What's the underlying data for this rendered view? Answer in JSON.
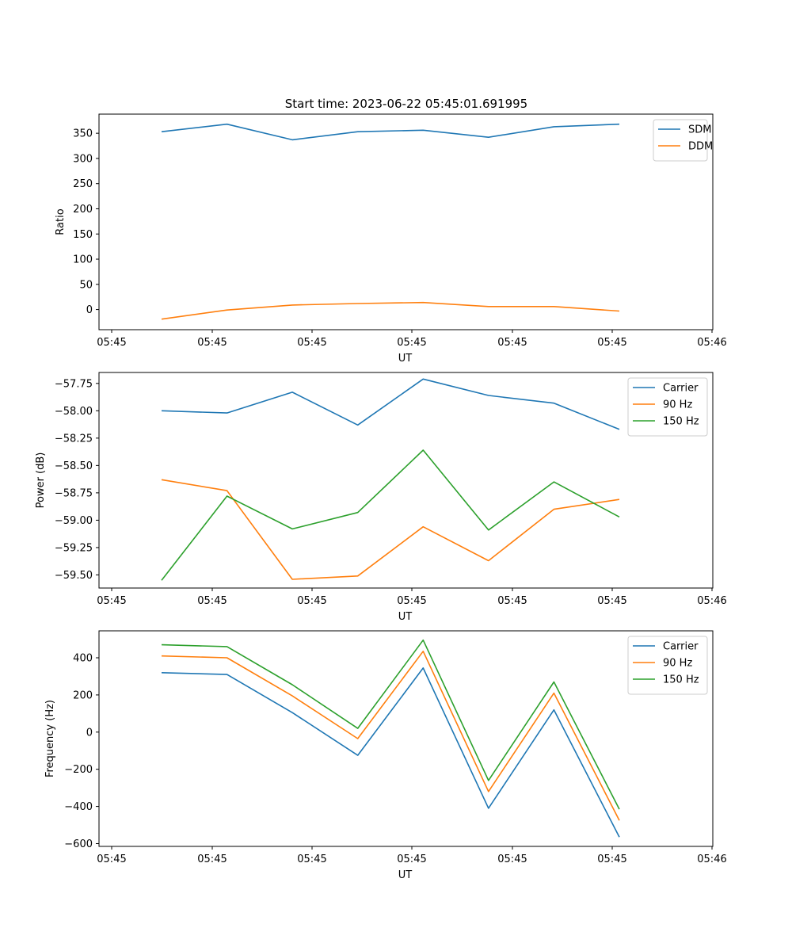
{
  "figure": {
    "title": "Start time: 2023-06-22 05:45:01.691995"
  },
  "chart_data": [
    {
      "type": "line",
      "title": "Start time: 2023-06-22 05:45:01.691995",
      "xlabel": "UT",
      "ylabel": "Ratio",
      "x_tick_labels": [
        "05:45",
        "05:45",
        "05:45",
        "05:45",
        "05:45",
        "05:45",
        "05:46"
      ],
      "x_axis_note": "x positions are point indices 0–7; tick labels are printed as shown",
      "x": [
        0,
        1,
        2,
        3,
        4,
        5,
        6,
        7
      ],
      "ylim": [
        -40,
        388
      ],
      "yticks": [
        0,
        50,
        100,
        150,
        200,
        250,
        300,
        350
      ],
      "legend": "top-right",
      "grid": false,
      "series": [
        {
          "name": "SDM",
          "color": "#1f77b4",
          "values": [
            353,
            368,
            337,
            353,
            356,
            342,
            363,
            368
          ]
        },
        {
          "name": "DDM",
          "color": "#ff7f0e",
          "values": [
            -19,
            -1,
            9,
            12,
            14,
            6,
            6,
            -3
          ]
        }
      ]
    },
    {
      "type": "line",
      "xlabel": "UT",
      "ylabel": "Power (dB)",
      "x_tick_labels": [
        "05:45",
        "05:45",
        "05:45",
        "05:45",
        "05:45",
        "05:45",
        "05:46"
      ],
      "x": [
        0,
        1,
        2,
        3,
        4,
        5,
        6,
        7
      ],
      "ylim": [
        -59.62,
        -57.65
      ],
      "yticks": [
        -59.5,
        -59.25,
        -59.0,
        -58.75,
        -58.5,
        -58.25,
        -58.0,
        -57.75
      ],
      "ytick_labels": [
        "−59.50",
        "−59.25",
        "−59.00",
        "−58.75",
        "−58.50",
        "−58.25",
        "−58.00",
        "−57.75"
      ],
      "legend": "top-right",
      "grid": false,
      "series": [
        {
          "name": "Carrier",
          "color": "#1f77b4",
          "values": [
            -58.0,
            -58.02,
            -57.83,
            -58.13,
            -57.71,
            -57.86,
            -57.93,
            -58.17
          ]
        },
        {
          "name": "90 Hz",
          "color": "#ff7f0e",
          "values": [
            -58.63,
            -58.73,
            -59.54,
            -59.51,
            -59.06,
            -59.37,
            -58.9,
            -58.81
          ]
        },
        {
          "name": "150 Hz",
          "color": "#2ca02c",
          "values": [
            -59.55,
            -58.78,
            -59.08,
            -58.93,
            -58.36,
            -59.09,
            -58.65,
            -58.97
          ]
        }
      ]
    },
    {
      "type": "line",
      "xlabel": "UT",
      "ylabel": "Frequency (Hz)",
      "x_tick_labels": [
        "05:45",
        "05:45",
        "05:45",
        "05:45",
        "05:45",
        "05:45",
        "05:46"
      ],
      "x": [
        0,
        1,
        2,
        3,
        4,
        5,
        6,
        7
      ],
      "ylim": [
        -615,
        545
      ],
      "yticks": [
        -600,
        -400,
        -200,
        0,
        200,
        400
      ],
      "ytick_labels": [
        "−600",
        "−400",
        "−200",
        "0",
        "200",
        "400"
      ],
      "legend": "top-right",
      "grid": false,
      "series": [
        {
          "name": "Carrier",
          "color": "#1f77b4",
          "values": [
            320,
            310,
            105,
            -125,
            345,
            -410,
            120,
            -565
          ]
        },
        {
          "name": "90 Hz",
          "color": "#ff7f0e",
          "values": [
            410,
            400,
            195,
            -35,
            435,
            -320,
            210,
            -475
          ]
        },
        {
          "name": "150 Hz",
          "color": "#2ca02c",
          "values": [
            470,
            460,
            255,
            20,
            495,
            -260,
            270,
            -415
          ]
        }
      ]
    }
  ]
}
